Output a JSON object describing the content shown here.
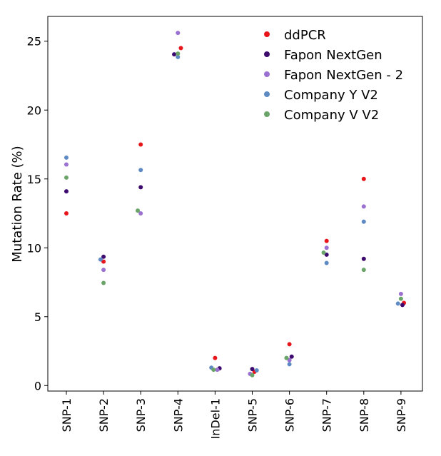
{
  "chart_data": {
    "type": "scatter",
    "title": "",
    "xlabel": "",
    "ylabel": "Mutation Rate (%)",
    "ylim": [
      -0.4,
      26.8
    ],
    "yticks": [
      0,
      5,
      10,
      15,
      20,
      25
    ],
    "categories": [
      "SNP-1",
      "SNP-2",
      "SNP-3",
      "SNP-4",
      "InDel-1",
      "SNP-5",
      "SNP-6",
      "SNP-7",
      "SNP-8",
      "SNP-9"
    ],
    "legend_position": "top-right",
    "series": [
      {
        "name": "ddPCR",
        "color": "#e8161b",
        "values": [
          12.5,
          9.0,
          17.5,
          24.5,
          2.0,
          1.0,
          3.0,
          10.5,
          15.0,
          6.0
        ],
        "jitter": [
          0.0,
          0.0,
          0.0,
          0.08,
          0.0,
          0.06,
          0.0,
          0.0,
          0.0,
          0.08
        ]
      },
      {
        "name": "Fapon NextGen",
        "color": "#3d0a6e",
        "values": [
          14.1,
          9.35,
          14.4,
          24.05,
          1.25,
          1.2,
          2.1,
          9.5,
          9.2,
          5.85
        ],
        "jitter": [
          0.0,
          0.0,
          0.0,
          -0.1,
          0.12,
          0.0,
          0.06,
          0.0,
          0.0,
          0.04
        ]
      },
      {
        "name": "Fapon NextGen - 2",
        "color": "#9a70d0",
        "values": [
          16.05,
          8.4,
          12.5,
          25.6,
          1.15,
          0.85,
          1.85,
          10.0,
          13.0,
          6.65
        ],
        "jitter": [
          0.0,
          0.0,
          0.0,
          0.0,
          0.06,
          -0.06,
          0.0,
          0.0,
          0.0,
          0.0
        ]
      },
      {
        "name": "Company Y V2",
        "color": "#5e8ac4",
        "values": [
          16.55,
          9.15,
          15.65,
          23.85,
          1.3,
          1.1,
          1.55,
          8.9,
          11.9,
          5.95
        ],
        "jitter": [
          0.0,
          -0.08,
          0.0,
          0.0,
          -0.1,
          0.12,
          0.0,
          0.0,
          0.0,
          -0.08
        ]
      },
      {
        "name": "Company V V2",
        "color": "#6aa468",
        "values": [
          15.1,
          7.45,
          12.7,
          24.1,
          1.15,
          0.75,
          2.0,
          9.65,
          8.4,
          6.3
        ],
        "jitter": [
          0.0,
          0.0,
          -0.08,
          0.0,
          -0.04,
          0.0,
          -0.08,
          -0.08,
          0.0,
          0.0
        ]
      }
    ]
  }
}
